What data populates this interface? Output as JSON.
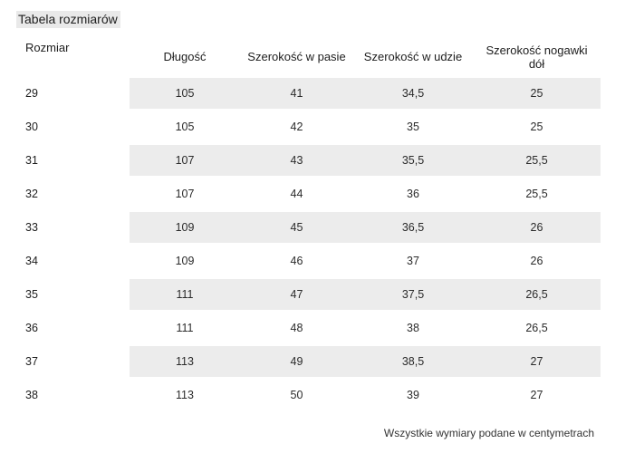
{
  "title": "Tabela rozmiarów",
  "table": {
    "columns": [
      "Rozmiar",
      "Długość",
      "Szerokość w pasie",
      "Szerokość w udzie",
      "Szerokość nogawki dół"
    ],
    "rows": [
      [
        "29",
        "105",
        "41",
        "34,5",
        "25"
      ],
      [
        "30",
        "105",
        "42",
        "35",
        "25"
      ],
      [
        "31",
        "107",
        "43",
        "35,5",
        "25,5"
      ],
      [
        "32",
        "107",
        "44",
        "36",
        "25,5"
      ],
      [
        "33",
        "109",
        "45",
        "36,5",
        "26"
      ],
      [
        "34",
        "109",
        "46",
        "37",
        "26"
      ],
      [
        "35",
        "111",
        "47",
        "37,5",
        "26,5"
      ],
      [
        "36",
        "111",
        "48",
        "38",
        "26,5"
      ],
      [
        "37",
        "113",
        "49",
        "38,5",
        "27"
      ],
      [
        "38",
        "113",
        "50",
        "39",
        "27"
      ]
    ]
  },
  "footer_note": "Wszystkie wymiary podane w centymetrach",
  "colors": {
    "stripe": "#ececec",
    "title_highlight": "#e9e9e9",
    "text": "#1d1d1d"
  }
}
